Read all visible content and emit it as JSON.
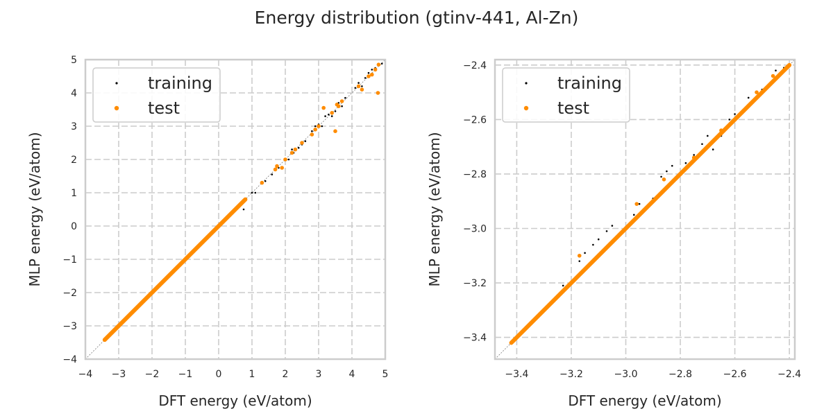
{
  "figure": {
    "title": "Energy distribution (gtinv-441, Al-Zn)"
  },
  "colors": {
    "training": "#000000",
    "test": "#ff8c00",
    "grid": "#cccccc",
    "frame": "#cccccc"
  },
  "chart_data": [
    {
      "type": "scatter",
      "xlabel": "DFT energy (eV/atom)",
      "ylabel": "MLP energy (eV/atom)",
      "xlim": [
        -4,
        5
      ],
      "ylim": [
        -4,
        5
      ],
      "xticks": [
        -4,
        -3,
        -2,
        -1,
        0,
        1,
        2,
        3,
        4,
        5
      ],
      "yticks": [
        -4,
        -3,
        -2,
        -1,
        0,
        1,
        2,
        3,
        4,
        5
      ],
      "xtick_labels": [
        "−4",
        "−3",
        "−2",
        "−1",
        "0",
        "1",
        "2",
        "3",
        "4",
        "5"
      ],
      "ytick_labels": [
        "−4",
        "−3",
        "−2",
        "−1",
        "0",
        "1",
        "2",
        "3",
        "4",
        "5"
      ],
      "grid": true,
      "legend": {
        "placement": "top-left",
        "entries": [
          "training",
          "test"
        ]
      },
      "series": [
        {
          "name": "training",
          "points": [
            [
              -3.42,
              -3.42
            ],
            [
              -3.0,
              -3.0
            ],
            [
              -2.5,
              -2.5
            ],
            [
              -2.0,
              -2.0
            ],
            [
              -1.5,
              -1.5
            ],
            [
              -1.0,
              -1.0
            ],
            [
              -0.5,
              -0.5
            ],
            [
              0.0,
              0.0
            ],
            [
              0.5,
              0.5
            ],
            [
              1.0,
              1.0
            ],
            [
              1.4,
              1.35
            ],
            [
              1.6,
              1.55
            ],
            [
              1.8,
              1.75
            ],
            [
              2.1,
              2.0
            ],
            [
              2.2,
              2.3
            ],
            [
              2.25,
              2.2
            ],
            [
              2.5,
              2.45
            ],
            [
              2.6,
              2.55
            ],
            [
              2.8,
              2.85
            ],
            [
              2.9,
              3.0
            ],
            [
              3.0,
              3.05
            ],
            [
              3.1,
              3.0
            ],
            [
              3.2,
              3.3
            ],
            [
              3.3,
              3.35
            ],
            [
              3.4,
              3.3
            ],
            [
              3.5,
              3.45
            ],
            [
              3.6,
              3.7
            ],
            [
              3.8,
              3.85
            ],
            [
              4.1,
              4.15
            ],
            [
              4.2,
              4.3
            ],
            [
              4.4,
              4.45
            ],
            [
              4.5,
              4.6
            ],
            [
              4.6,
              4.7
            ],
            [
              4.7,
              4.75
            ],
            [
              4.8,
              4.85
            ],
            [
              4.9,
              4.88
            ],
            [
              2.4,
              2.35
            ],
            [
              0.75,
              0.5
            ],
            [
              1.1,
              1.0
            ],
            [
              3.7,
              3.6
            ],
            [
              4.3,
              4.2
            ]
          ]
        },
        {
          "name": "test",
          "points": [
            [
              -3.42,
              -3.42
            ],
            [
              -3.2,
              -3.2
            ],
            [
              -3.0,
              -3.0
            ],
            [
              -2.5,
              -2.5
            ],
            [
              -2.0,
              -2.0
            ],
            [
              -1.5,
              -1.5
            ],
            [
              -1.0,
              -1.0
            ],
            [
              -0.5,
              -0.5
            ],
            [
              0.0,
              0.0
            ],
            [
              0.4,
              0.4
            ],
            [
              0.7,
              0.7
            ],
            [
              1.3,
              1.3
            ],
            [
              1.7,
              1.7
            ],
            [
              1.9,
              1.75
            ],
            [
              2.0,
              2.0
            ],
            [
              2.2,
              2.2
            ],
            [
              2.5,
              2.5
            ],
            [
              2.9,
              2.9
            ],
            [
              3.0,
              3.0
            ],
            [
              3.15,
              3.55
            ],
            [
              3.4,
              3.4
            ],
            [
              3.5,
              2.85
            ],
            [
              3.55,
              3.65
            ],
            [
              3.6,
              3.6
            ],
            [
              3.7,
              3.75
            ],
            [
              4.2,
              4.2
            ],
            [
              4.3,
              4.1
            ],
            [
              4.5,
              4.5
            ],
            [
              4.6,
              4.55
            ],
            [
              4.7,
              4.7
            ],
            [
              4.78,
              4.0
            ],
            [
              4.8,
              4.85
            ],
            [
              2.3,
              2.3
            ],
            [
              2.8,
              2.75
            ],
            [
              1.75,
              1.8
            ]
          ]
        }
      ]
    },
    {
      "type": "scatter",
      "xlabel": "DFT energy (eV/atom)",
      "ylabel": "MLP energy (eV/atom)",
      "xlim": [
        -3.48,
        -2.38
      ],
      "ylim": [
        -3.48,
        -2.38
      ],
      "xticks": [
        -3.4,
        -3.2,
        -3.0,
        -2.8,
        -2.6,
        -2.4
      ],
      "yticks": [
        -3.4,
        -3.2,
        -3.0,
        -2.8,
        -2.6,
        -2.4
      ],
      "xtick_labels": [
        "−3.4",
        "−3.2",
        "−3.0",
        "−2.8",
        "−2.6",
        "−2.4"
      ],
      "ytick_labels": [
        "−3.4",
        "−3.2",
        "−3.0",
        "−2.8",
        "−2.6",
        "−2.4"
      ],
      "grid": true,
      "legend": {
        "placement": "top-left",
        "entries": [
          "training",
          "test"
        ]
      },
      "series": [
        {
          "name": "training",
          "points": [
            [
              -3.42,
              -3.42
            ],
            [
              -3.3,
              -3.3
            ],
            [
              -3.23,
              -3.21
            ],
            [
              -3.2,
              -3.2
            ],
            [
              -3.17,
              -3.12
            ],
            [
              -3.15,
              -3.09
            ],
            [
              -3.12,
              -3.06
            ],
            [
              -3.1,
              -3.04
            ],
            [
              -3.07,
              -3.01
            ],
            [
              -3.05,
              -2.99
            ],
            [
              -3.0,
              -3.0
            ],
            [
              -2.95,
              -2.91
            ],
            [
              -2.9,
              -2.89
            ],
            [
              -2.87,
              -2.81
            ],
            [
              -2.85,
              -2.79
            ],
            [
              -2.83,
              -2.77
            ],
            [
              -2.8,
              -2.8
            ],
            [
              -2.75,
              -2.73
            ],
            [
              -2.7,
              -2.66
            ],
            [
              -2.68,
              -2.71
            ],
            [
              -2.65,
              -2.66
            ],
            [
              -2.6,
              -2.58
            ],
            [
              -2.55,
              -2.52
            ],
            [
              -2.5,
              -2.49
            ],
            [
              -2.45,
              -2.42
            ],
            [
              -2.42,
              -2.41
            ],
            [
              -2.62,
              -2.6
            ],
            [
              -2.72,
              -2.69
            ],
            [
              -2.78,
              -2.76
            ],
            [
              -2.97,
              -2.95
            ]
          ]
        },
        {
          "name": "test",
          "points": [
            [
              -3.42,
              -3.42
            ],
            [
              -3.35,
              -3.35
            ],
            [
              -3.3,
              -3.3
            ],
            [
              -3.25,
              -3.25
            ],
            [
              -3.2,
              -3.2
            ],
            [
              -3.17,
              -3.1
            ],
            [
              -3.1,
              -3.1
            ],
            [
              -3.0,
              -3.0
            ],
            [
              -2.96,
              -2.91
            ],
            [
              -2.9,
              -2.9
            ],
            [
              -2.86,
              -2.82
            ],
            [
              -2.8,
              -2.8
            ],
            [
              -2.75,
              -2.74
            ],
            [
              -2.7,
              -2.7
            ],
            [
              -2.65,
              -2.64
            ],
            [
              -2.6,
              -2.6
            ],
            [
              -2.55,
              -2.55
            ],
            [
              -2.5,
              -2.5
            ],
            [
              -2.45,
              -2.45
            ],
            [
              -2.4,
              -2.4
            ],
            [
              -2.46,
              -2.44
            ],
            [
              -2.52,
              -2.5
            ]
          ]
        }
      ]
    }
  ]
}
